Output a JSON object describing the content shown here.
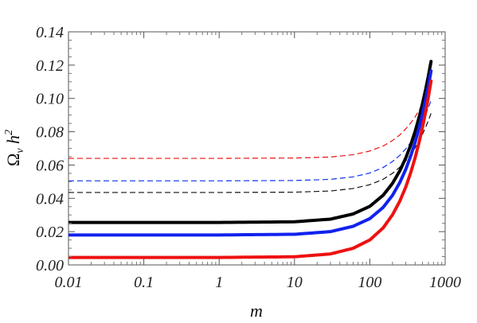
{
  "chart_data": {
    "type": "line",
    "title": "",
    "xlabel": "m",
    "ylabel": "Ω_ν h²",
    "ylabel_parts": {
      "base": "Ω",
      "sub": "ν",
      "mid": " h",
      "sup": "2"
    },
    "x_scale": "log",
    "xlim": [
      0.01,
      1000
    ],
    "ylim": [
      0.0,
      0.14
    ],
    "grid": false,
    "x_ticks": [
      0.01,
      0.1,
      1,
      10,
      100,
      1000
    ],
    "x_tick_labels": [
      "0.01",
      "0.1",
      "1",
      "10",
      "100",
      "1000"
    ],
    "y_ticks": [
      0.0,
      0.02,
      0.04,
      0.06,
      0.08,
      0.1,
      0.12,
      0.14
    ],
    "y_tick_labels": [
      "0.00",
      "0.02",
      "0.04",
      "0.06",
      "0.08",
      "0.10",
      "0.12",
      "0.14"
    ],
    "series": [
      {
        "color": "#ee1111",
        "style": "dashed",
        "width": 1.2,
        "x": [
          0.01,
          1,
          10,
          30,
          60,
          100,
          150,
          200,
          250,
          300,
          350,
          400,
          450,
          500,
          550,
          600,
          650
        ],
        "y": [
          0.064,
          0.064,
          0.0642,
          0.0648,
          0.0662,
          0.0684,
          0.0714,
          0.0747,
          0.0781,
          0.0817,
          0.0853,
          0.089,
          0.0928,
          0.0966,
          0.1004,
          0.1043,
          0.1082
        ]
      },
      {
        "color": "#1133ee",
        "style": "dashed",
        "width": 1.2,
        "x": [
          0.01,
          1,
          10,
          30,
          60,
          100,
          150,
          200,
          250,
          300,
          350,
          400,
          450,
          500,
          550,
          600,
          650
        ],
        "y": [
          0.0505,
          0.0505,
          0.0507,
          0.0514,
          0.0529,
          0.0552,
          0.0585,
          0.0621,
          0.0658,
          0.0697,
          0.0737,
          0.0778,
          0.0819,
          0.0861,
          0.0903,
          0.0945,
          0.0988
        ]
      },
      {
        "color": "#111111",
        "style": "dashed",
        "width": 1.2,
        "x": [
          0.01,
          1,
          10,
          30,
          60,
          100,
          150,
          200,
          250,
          300,
          350,
          400,
          450,
          500,
          550,
          600,
          650
        ],
        "y": [
          0.0435,
          0.0435,
          0.0437,
          0.0444,
          0.0459,
          0.0482,
          0.0514,
          0.055,
          0.0587,
          0.0625,
          0.0664,
          0.0704,
          0.0744,
          0.0785,
          0.0826,
          0.0868,
          0.091
        ]
      },
      {
        "color": "#000000",
        "style": "solid",
        "width": 4,
        "x": [
          0.01,
          1,
          10,
          30,
          60,
          100,
          150,
          200,
          250,
          300,
          350,
          400,
          450,
          500,
          550,
          600,
          650
        ],
        "y": [
          0.0255,
          0.0255,
          0.0259,
          0.0275,
          0.0306,
          0.0352,
          0.0418,
          0.049,
          0.0565,
          0.0642,
          0.0722,
          0.0803,
          0.0885,
          0.0968,
          0.1052,
          0.1137,
          0.1222
        ]
      },
      {
        "color": "#1122ee",
        "style": "solid",
        "width": 4,
        "x": [
          0.01,
          1,
          10,
          30,
          60,
          100,
          150,
          200,
          250,
          300,
          350,
          400,
          450,
          500,
          550,
          600,
          650
        ],
        "y": [
          0.018,
          0.018,
          0.0184,
          0.02,
          0.0232,
          0.0278,
          0.0345,
          0.0418,
          0.0495,
          0.0574,
          0.0656,
          0.0738,
          0.0822,
          0.0906,
          0.0992,
          0.1078,
          0.1165
        ]
      },
      {
        "color": "#ee1111",
        "style": "solid",
        "width": 4,
        "x": [
          0.01,
          1,
          10,
          30,
          60,
          100,
          150,
          200,
          250,
          300,
          350,
          400,
          450,
          500,
          550,
          600,
          650
        ],
        "y": [
          0.0045,
          0.0045,
          0.0049,
          0.0066,
          0.01,
          0.015,
          0.0222,
          0.0301,
          0.0383,
          0.0468,
          0.0556,
          0.0645,
          0.0735,
          0.0826,
          0.0918,
          0.1011,
          0.1105
        ]
      }
    ]
  }
}
